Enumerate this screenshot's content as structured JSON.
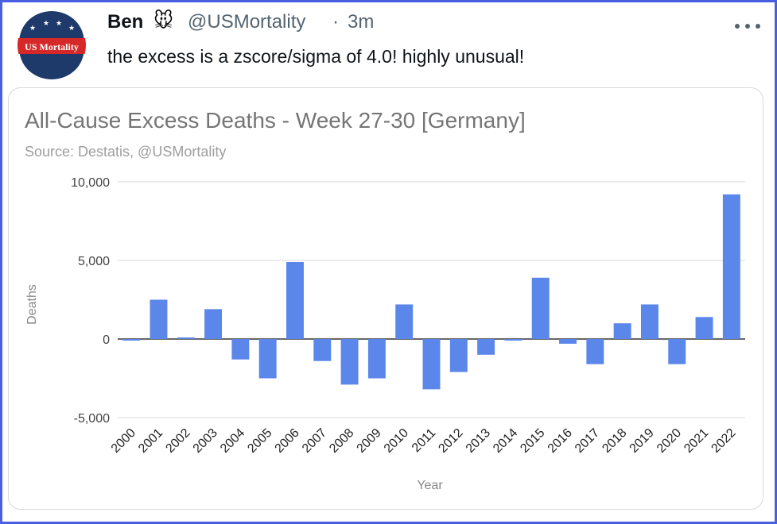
{
  "tweet": {
    "display_name": "Ben",
    "name_emoji": "🐭",
    "handle": "@USMortality",
    "separator": "·",
    "time": "3m",
    "text": "the excess is a zscore/sigma of 4.0! highly unusual!",
    "avatar_text": "US Mortality",
    "more_icon": "more-dots-icon"
  },
  "colors": {
    "frame": "#4a5fe0",
    "bar": "#5b87eb",
    "avatar_red": "#d62828",
    "avatar_navy": "#1d3a6b"
  },
  "chart_data": {
    "type": "bar",
    "title": "All-Cause Excess Deaths - Week 27-30 [Germany]",
    "subtitle": "Source: Destatis, @USMortality",
    "xlabel": "Year",
    "ylabel": "Deaths",
    "ylim": [
      -5000,
      10000
    ],
    "yticks": [
      10000,
      5000,
      0,
      -5000
    ],
    "ytick_labels": [
      "10,000",
      "5,000",
      "0",
      "-5,000"
    ],
    "grid": true,
    "categories": [
      "2000",
      "2001",
      "2002",
      "2003",
      "2004",
      "2005",
      "2006",
      "2007",
      "2008",
      "2009",
      "2010",
      "2011",
      "2012",
      "2013",
      "2014",
      "2015",
      "2016",
      "2017",
      "2018",
      "2019",
      "2020",
      "2021",
      "2022"
    ],
    "values": [
      -100,
      2500,
      100,
      1900,
      -1300,
      -2500,
      4900,
      -1400,
      -2900,
      -2500,
      2200,
      -3200,
      -2100,
      -1000,
      -100,
      3900,
      -300,
      -1600,
      1000,
      2200,
      -1600,
      1400,
      9200
    ]
  }
}
